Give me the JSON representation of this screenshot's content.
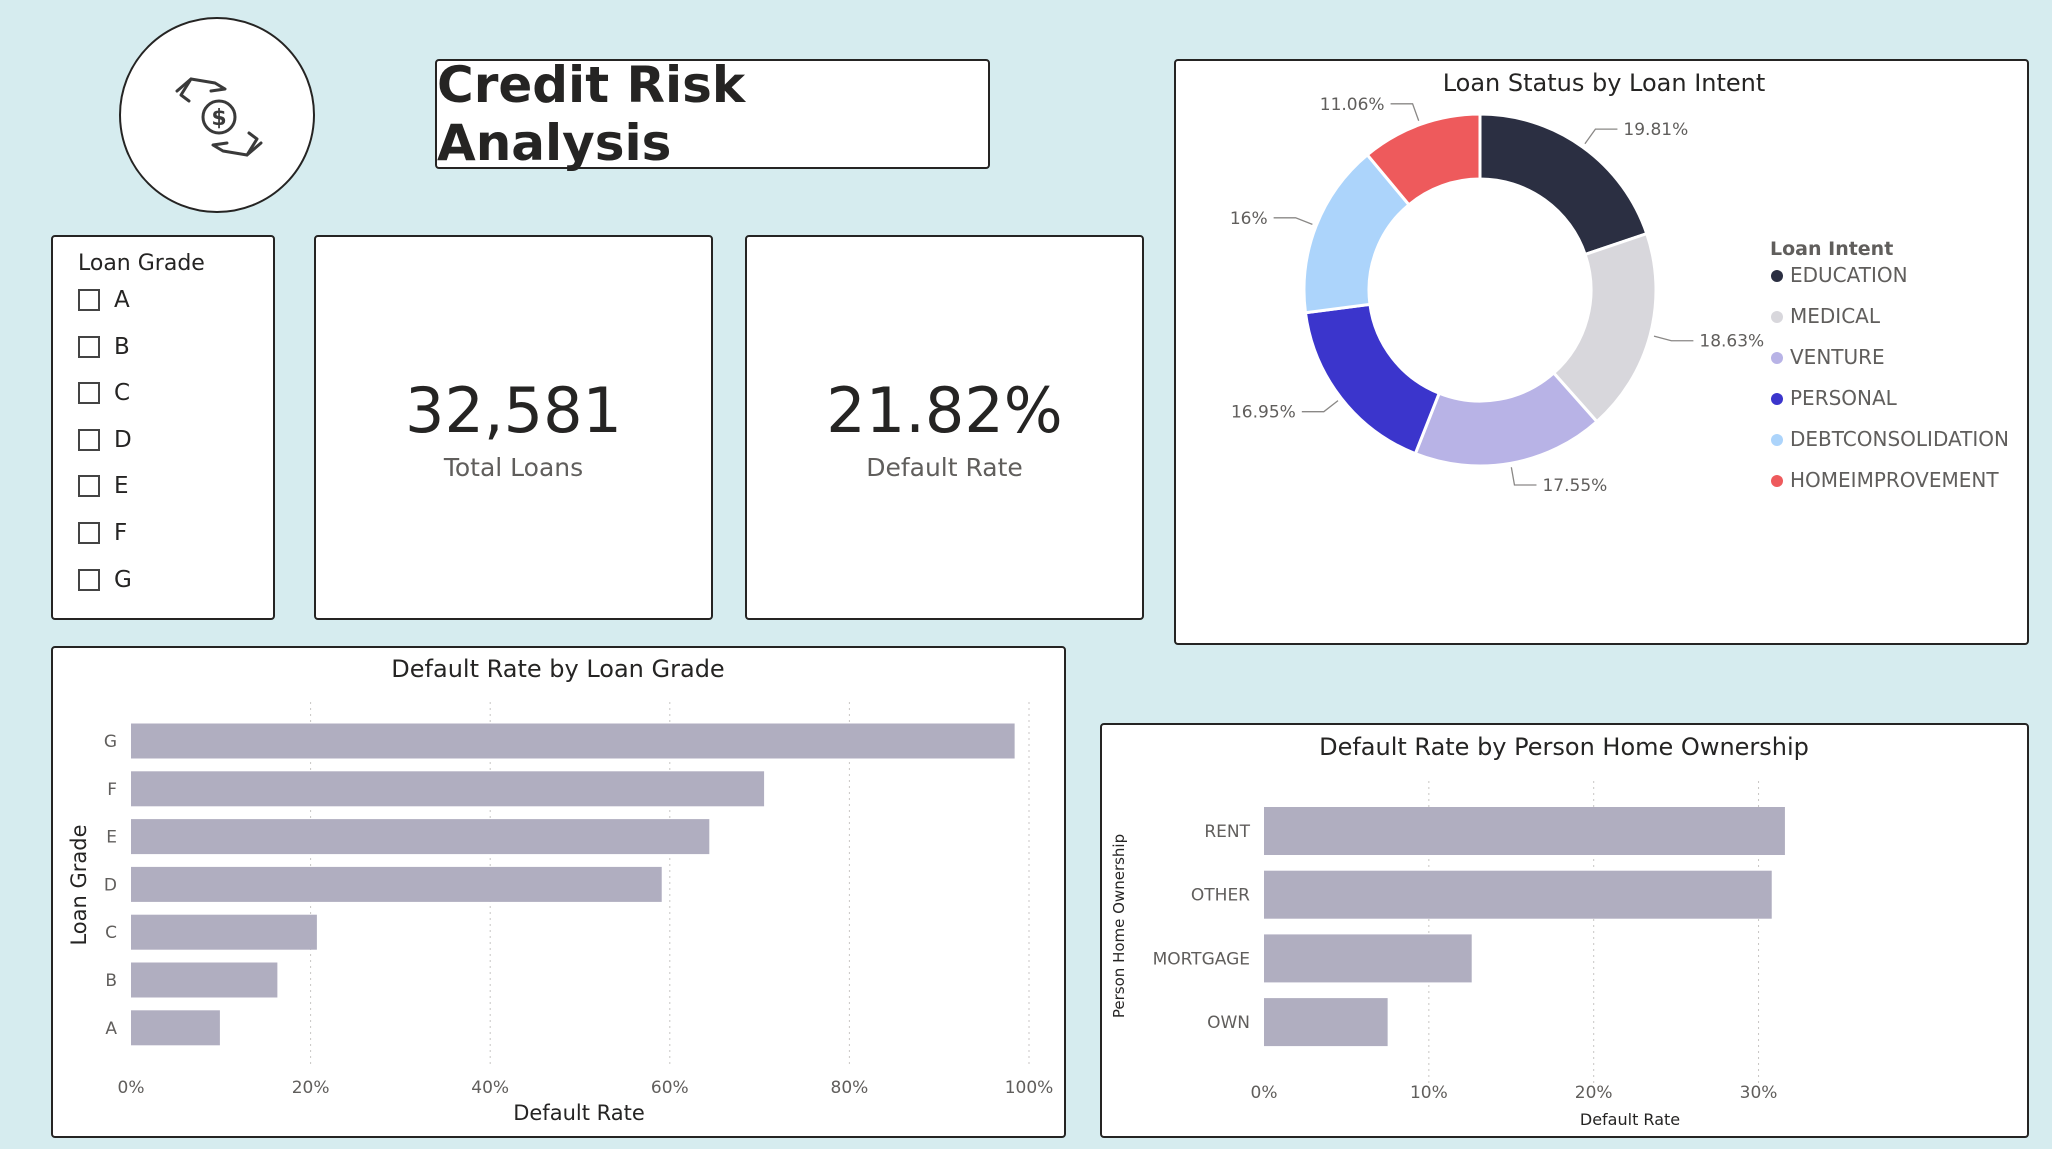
{
  "header": {
    "title": "Credit Risk Analysis",
    "logo_icon": "money-exchange-hands-icon"
  },
  "slicer": {
    "title": "Loan Grade",
    "options": [
      "A",
      "B",
      "C",
      "D",
      "E",
      "F",
      "G"
    ]
  },
  "cards": {
    "total_loans": {
      "value": "32,581",
      "label": "Total Loans"
    },
    "default_rate": {
      "value": "21.82%",
      "label": "Default Rate"
    }
  },
  "colors": {
    "background": "#d6ecef",
    "bar": "#b0aec0",
    "border": "#252423"
  },
  "chart_data": [
    {
      "id": "loan-intent",
      "type": "pie",
      "title": "Loan Status by Loan Intent",
      "legend_title": "Loan Intent",
      "legend_position": "right",
      "donut": true,
      "slices": [
        {
          "name": "EDUCATION",
          "value": 19.81,
          "label": "19.81%",
          "color": "#2b2f42"
        },
        {
          "name": "MEDICAL",
          "value": 18.63,
          "label": "18.63%",
          "color": "#d8d7dc"
        },
        {
          "name": "VENTURE",
          "value": 17.55,
          "label": "17.55%",
          "color": "#b8b3e6"
        },
        {
          "name": "PERSONAL",
          "value": 16.95,
          "label": "16.95%",
          "color": "#3b35cc"
        },
        {
          "name": "DEBTCONSOLIDATION",
          "value": 16.0,
          "label": "16%",
          "color": "#acd4fb"
        },
        {
          "name": "HOMEIMPROVEMENT",
          "value": 11.06,
          "label": "11.06%",
          "color": "#ee5a5c"
        }
      ]
    },
    {
      "id": "grade",
      "type": "bar",
      "orientation": "horizontal",
      "title": "Default Rate by Loan Grade",
      "xlabel": "Default Rate",
      "ylabel": "Loan Grade",
      "categories": [
        "G",
        "F",
        "E",
        "D",
        "C",
        "B",
        "A"
      ],
      "values": [
        98.4,
        70.5,
        64.4,
        59.1,
        20.7,
        16.3,
        9.9
      ],
      "xlim": [
        0,
        100
      ],
      "xticks": [
        0,
        20,
        40,
        60,
        80,
        100
      ],
      "xtick_labels": [
        "0%",
        "20%",
        "40%",
        "60%",
        "80%",
        "100%"
      ],
      "grid": true
    },
    {
      "id": "home",
      "type": "bar",
      "orientation": "horizontal",
      "title": "Default Rate by Person Home Ownership",
      "xlabel": "Default Rate",
      "ylabel": "Person Home Ownership",
      "categories": [
        "RENT",
        "OTHER",
        "MORTGAGE",
        "OWN"
      ],
      "values": [
        31.6,
        30.8,
        12.6,
        7.5
      ],
      "xlim": [
        0,
        33
      ],
      "xticks": [
        0,
        10,
        20,
        30
      ],
      "xtick_labels": [
        "0%",
        "10%",
        "20%",
        "30%"
      ],
      "grid": true
    }
  ]
}
